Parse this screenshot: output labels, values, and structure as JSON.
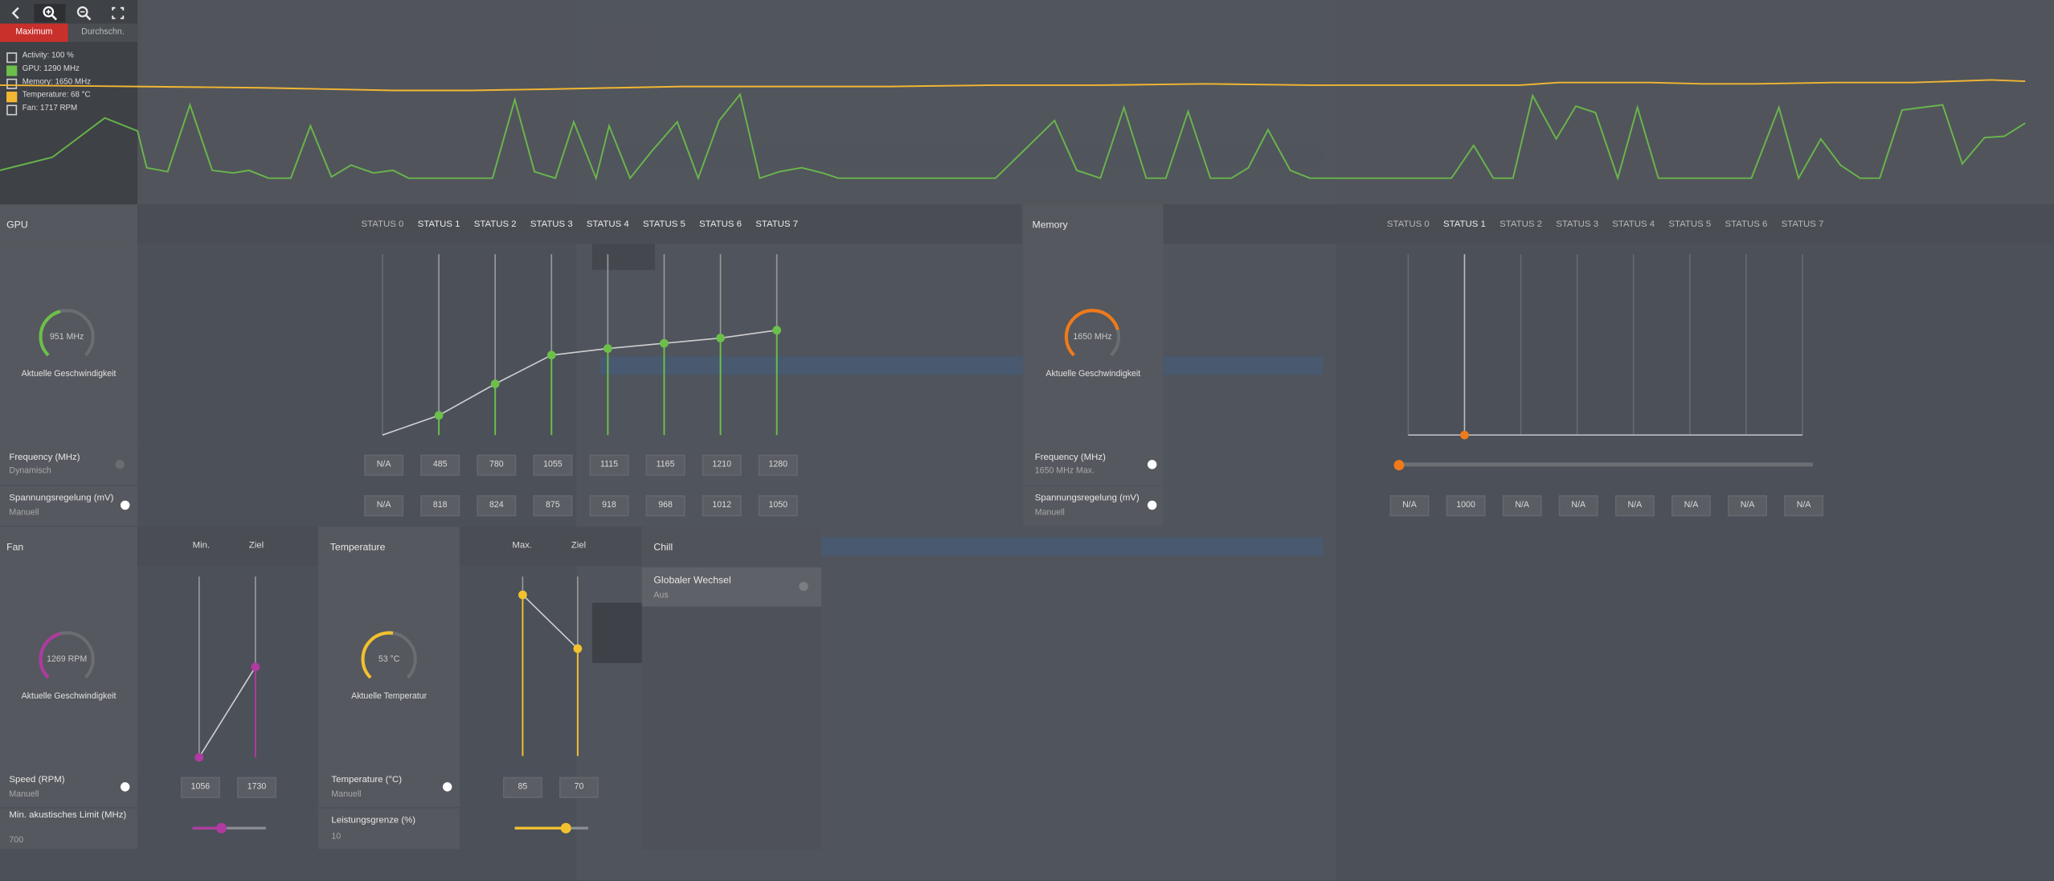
{
  "toolbar": {
    "back_icon": "chevron-left-icon",
    "zoom_in_icon": "zoom-in-icon",
    "zoom_out_icon": "zoom-out-icon",
    "reset_icon": "reset-zoom-icon",
    "tab_max": "Maximum",
    "tab_avg": "Durchschn."
  },
  "legend": [
    {
      "label": "Activity: 100 %",
      "checked": false,
      "color": "#d0d0d0"
    },
    {
      "label": "GPU: 1290 MHz",
      "checked": true,
      "color": "#6cc04a"
    },
    {
      "label": "Memory: 1650 MHz",
      "checked": false,
      "color": "#d0d0d0"
    },
    {
      "label": "Temperature: 68 °C",
      "checked": true,
      "color": "#f2b632"
    },
    {
      "label": "Fan: 1717 RPM",
      "checked": false,
      "color": "#d0d0d0"
    }
  ],
  "colors": {
    "gpu": "#6cc04a",
    "memory": "#f07a1a",
    "fan": "#b03aa0",
    "temperature": "#f2c12e"
  },
  "gpu": {
    "title": "GPU",
    "gauge_value": "951 MHz",
    "gauge_fraction": 0.45,
    "gauge_label": "Aktuelle Geschwindigkeit",
    "states": [
      "STATUS 0",
      "STATUS 1",
      "STATUS 2",
      "STATUS 3",
      "STATUS 4",
      "STATUS 5",
      "STATUS 6",
      "STATUS 7"
    ],
    "frequency_label": "Frequency (MHz)",
    "frequency_mode": "Dynamisch",
    "frequencies": [
      "N/A",
      "485",
      "780",
      "1055",
      "1115",
      "1165",
      "1210",
      "1280"
    ],
    "voltage_label": "Spannungsregelung (mV)",
    "voltage_mode": "Manuell",
    "voltages": [
      "N/A",
      "818",
      "824",
      "875",
      "918",
      "968",
      "1012",
      "1050"
    ]
  },
  "memory": {
    "title": "Memory",
    "gauge_value": "1650 MHz",
    "gauge_fraction": 0.78,
    "gauge_label": "Aktuelle Geschwindigkeit",
    "states": [
      "STATUS 0",
      "STATUS 1",
      "STATUS 2",
      "STATUS 3",
      "STATUS 4",
      "STATUS 5",
      "STATUS 6",
      "STATUS 7"
    ],
    "frequency_label": "Frequency (MHz)",
    "frequency_mode": "1650 MHz Max.",
    "frequency_slider_fraction": 0.0,
    "voltage_label": "Spannungsregelung (mV)",
    "voltage_mode": "Manuell",
    "voltages": [
      "N/A",
      "1000",
      "N/A",
      "N/A",
      "N/A",
      "N/A",
      "N/A",
      "N/A"
    ]
  },
  "fan": {
    "title": "Fan",
    "col_min": "Min.",
    "col_target": "Ziel",
    "gauge_value": "1269 RPM",
    "gauge_fraction": 0.45,
    "gauge_label": "Aktuelle Geschwindigkeit",
    "speed_label": "Speed (RPM)",
    "speed_mode": "Manuell",
    "speed_min": "1056",
    "speed_target": "1730",
    "acoustic_label": "Min. akustisches Limit (MHz)",
    "acoustic_value": "700",
    "acoustic_slider_fraction": 0.4
  },
  "temperature": {
    "title": "Temperature",
    "col_max": "Max.",
    "col_target": "Ziel",
    "gauge_value": "53 °C",
    "gauge_fraction": 0.5,
    "gauge_label": "Aktuelle Temperatur",
    "temp_label": "Temperature (°C)",
    "temp_mode": "Manuell",
    "temp_max": "85",
    "temp_target": "70",
    "power_label": "Leistungsgrenze (%)",
    "power_value": "10",
    "power_slider_fraction": 0.7
  },
  "chill": {
    "title": "Chill",
    "global_label": "Globaler Wechsel",
    "global_value": "Aus"
  }
}
